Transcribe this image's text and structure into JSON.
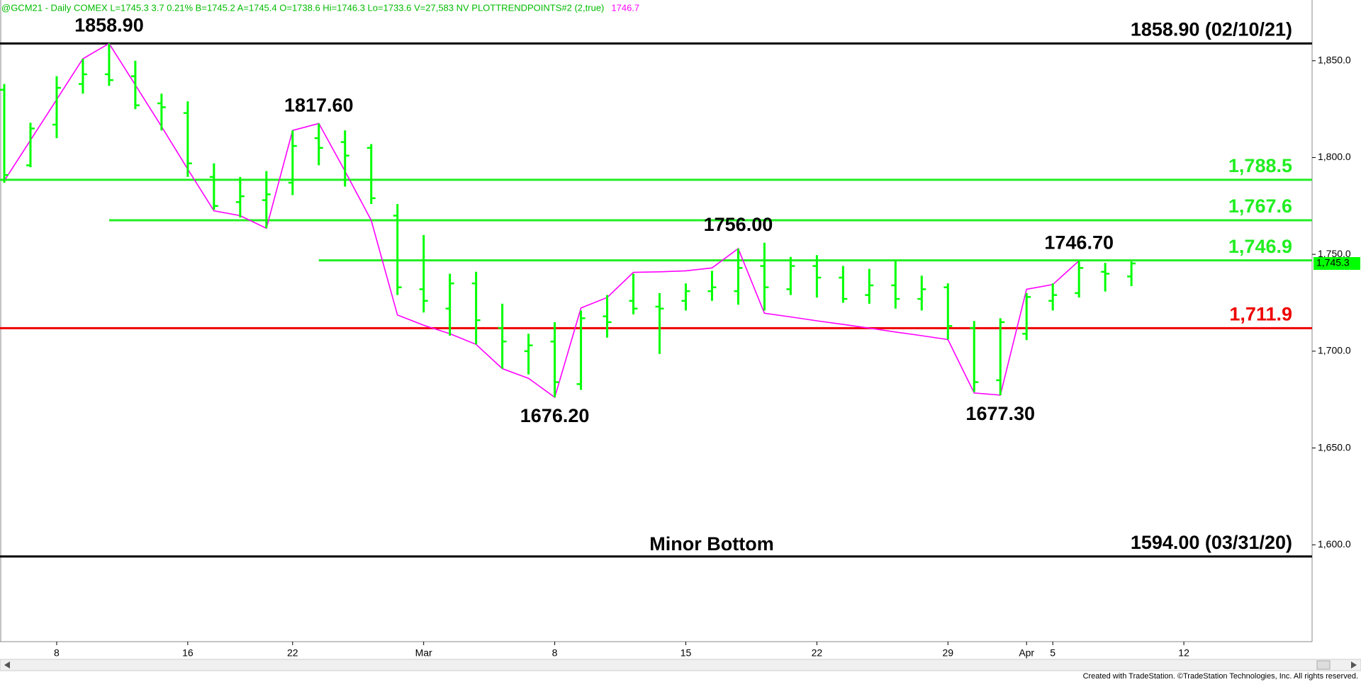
{
  "chart_data": {
    "type": "ohlc",
    "header": "@GCM21 - Daily  COMEX  L=1745.3  3.7  0.21%  B=1745.2  A=1745.4  O=1738.6  Hi=1746.3  Lo=1733.6  V=27,583  NV  PLOTTRENDPOINTS#2 (2,true)",
    "header_trend": "1746.7",
    "footer": "Created with TradeStation. ©TradeStation Technologies, Inc. All rights reserved.",
    "categories": [
      null,
      null,
      "8",
      null,
      null,
      null,
      null,
      "16",
      null,
      null,
      null,
      "22",
      null,
      null,
      null,
      null,
      "Mar",
      null,
      null,
      null,
      null,
      "8",
      null,
      null,
      null,
      null,
      "15",
      null,
      null,
      null,
      null,
      "22",
      null,
      null,
      null,
      null,
      "29",
      null,
      null,
      "Apr",
      "5",
      null,
      null,
      null,
      null,
      "12",
      null,
      null,
      null,
      null
    ],
    "color": "#00ff00",
    "open": [
      1835,
      1796,
      1817,
      1838,
      1843,
      1842,
      1828,
      1823,
      1790,
      1777,
      1778,
      1787,
      1810,
      1808,
      1805,
      1770,
      1732,
      1722,
      1735,
      1712,
      1700,
      1705,
      1683,
      1718,
      1726,
      1723,
      1726,
      1731,
      1731,
      1744,
      1732,
      1744,
      1738,
      1729,
      1734,
      1727,
      1733,
      1712,
      1685,
      1709,
      1726,
      1730,
      1741,
      1738.6,
      null,
      null,
      null,
      null,
      null,
      null
    ],
    "high": [
      1838,
      1818,
      1842,
      1851,
      1858.9,
      1850,
      1833,
      1829,
      1797,
      1790,
      1793,
      1814,
      1817.6,
      1814,
      1807,
      1776,
      1760,
      1740,
      1741,
      1724.5,
      1709,
      1715,
      1721,
      1729,
      1740,
      1730,
      1735,
      1741.5,
      1753,
      1756,
      1748.7,
      1749.6,
      1744,
      1742.5,
      1747,
      1739,
      1735,
      1715.6,
      1717,
      1730,
      1735,
      1747,
      1745.6,
      1746.3,
      null,
      null,
      null,
      null,
      null,
      null
    ],
    "low": [
      1787,
      1795,
      1810,
      1833,
      1837,
      1825,
      1814,
      1790,
      1773,
      1769,
      1763.5,
      1780.6,
      1796,
      1785,
      1776,
      1729,
      1720,
      1708,
      1703.5,
      1691,
      1688,
      1676.2,
      1680,
      1707,
      1719,
      1698.6,
      1721,
      1726,
      1724,
      1721,
      1729,
      1727.7,
      1725,
      1724.5,
      1722,
      1721,
      1706,
      1678.9,
      1677.3,
      1705.7,
      1721,
      1727.7,
      1730.8,
      1733.6,
      null,
      null,
      null,
      null,
      null,
      null
    ],
    "close": [
      1791,
      1815,
      1836,
      1843,
      1840,
      1827,
      1826,
      1797,
      1775,
      1780,
      1781,
      1806,
      1805,
      1801,
      1779,
      1733,
      1726,
      1735,
      1716,
      1705,
      1703,
      1684,
      1717,
      1715,
      1722,
      1722,
      1731,
      1733,
      1743,
      1733,
      1744,
      1738,
      1727,
      1734,
      1727,
      1732,
      1713,
      1684,
      1715,
      1728,
      1729,
      1743,
      1740,
      1745.3,
      null,
      null,
      null,
      null,
      null,
      null
    ],
    "trend": {
      "color": "#ff00ff",
      "values": [
        1788,
        1809,
        1830,
        1851,
        1858.9,
        1837.5,
        1816,
        1794,
        1772.5,
        1770,
        1763.5,
        1814,
        1817.6,
        1793,
        1767.6,
        1718.7,
        1713.4,
        1709,
        1703.5,
        1691,
        1686,
        1676.2,
        1722.3,
        1727.7,
        1740.7,
        1741,
        1741.5,
        1743,
        1753,
        1719.6,
        1717.7,
        1715.7,
        1713.8,
        1711.9,
        1709.9,
        1708,
        1706,
        1678.4,
        1677.3,
        1732,
        1734.4,
        1746.7,
        null,
        null,
        null,
        null,
        null,
        null,
        null,
        null
      ]
    },
    "pivot_labels": [
      {
        "value": 1858.9,
        "label": "1858.90"
      },
      {
        "value": 1817.6,
        "label": "1817.60"
      },
      {
        "value": 1756,
        "label": "1756.00"
      },
      {
        "value": 1746.7,
        "label": "1746.70"
      },
      {
        "value": 1676.2,
        "label": "1676.20"
      },
      {
        "value": 1677.3,
        "label": "1677.30"
      }
    ],
    "levels": [
      {
        "value": 1858.9,
        "label": "1858.90 (02/10/21)",
        "color": "#000000"
      },
      {
        "value": 1788.5,
        "label": "1,788.5",
        "color": "#22ee22"
      },
      {
        "value": 1767.6,
        "label": "1,767.6",
        "color": "#22ee22",
        "from": 4
      },
      {
        "value": 1746.9,
        "label": "1,746.9",
        "color": "#22ee22",
        "from": 12
      },
      {
        "value": 1711.9,
        "label": "1,711.9",
        "color": "#ee0000"
      },
      {
        "value": 1594,
        "label": "1594.00 (03/31/20)",
        "color": "#000000"
      }
    ],
    "annotation": "Minor Bottom",
    "last": {
      "value": 1745.3,
      "label": "1,745.3"
    },
    "ylim": [
      1550,
      1881
    ],
    "yticks": [
      {
        "value": 1600,
        "label": "1,600.0"
      },
      {
        "value": 1650,
        "label": "1,650.0"
      },
      {
        "value": 1700,
        "label": "1,700.0"
      },
      {
        "value": 1750,
        "label": "1,750.0"
      },
      {
        "value": 1800,
        "label": "1,800.0"
      },
      {
        "value": 1850,
        "label": "1,850.0"
      }
    ]
  }
}
